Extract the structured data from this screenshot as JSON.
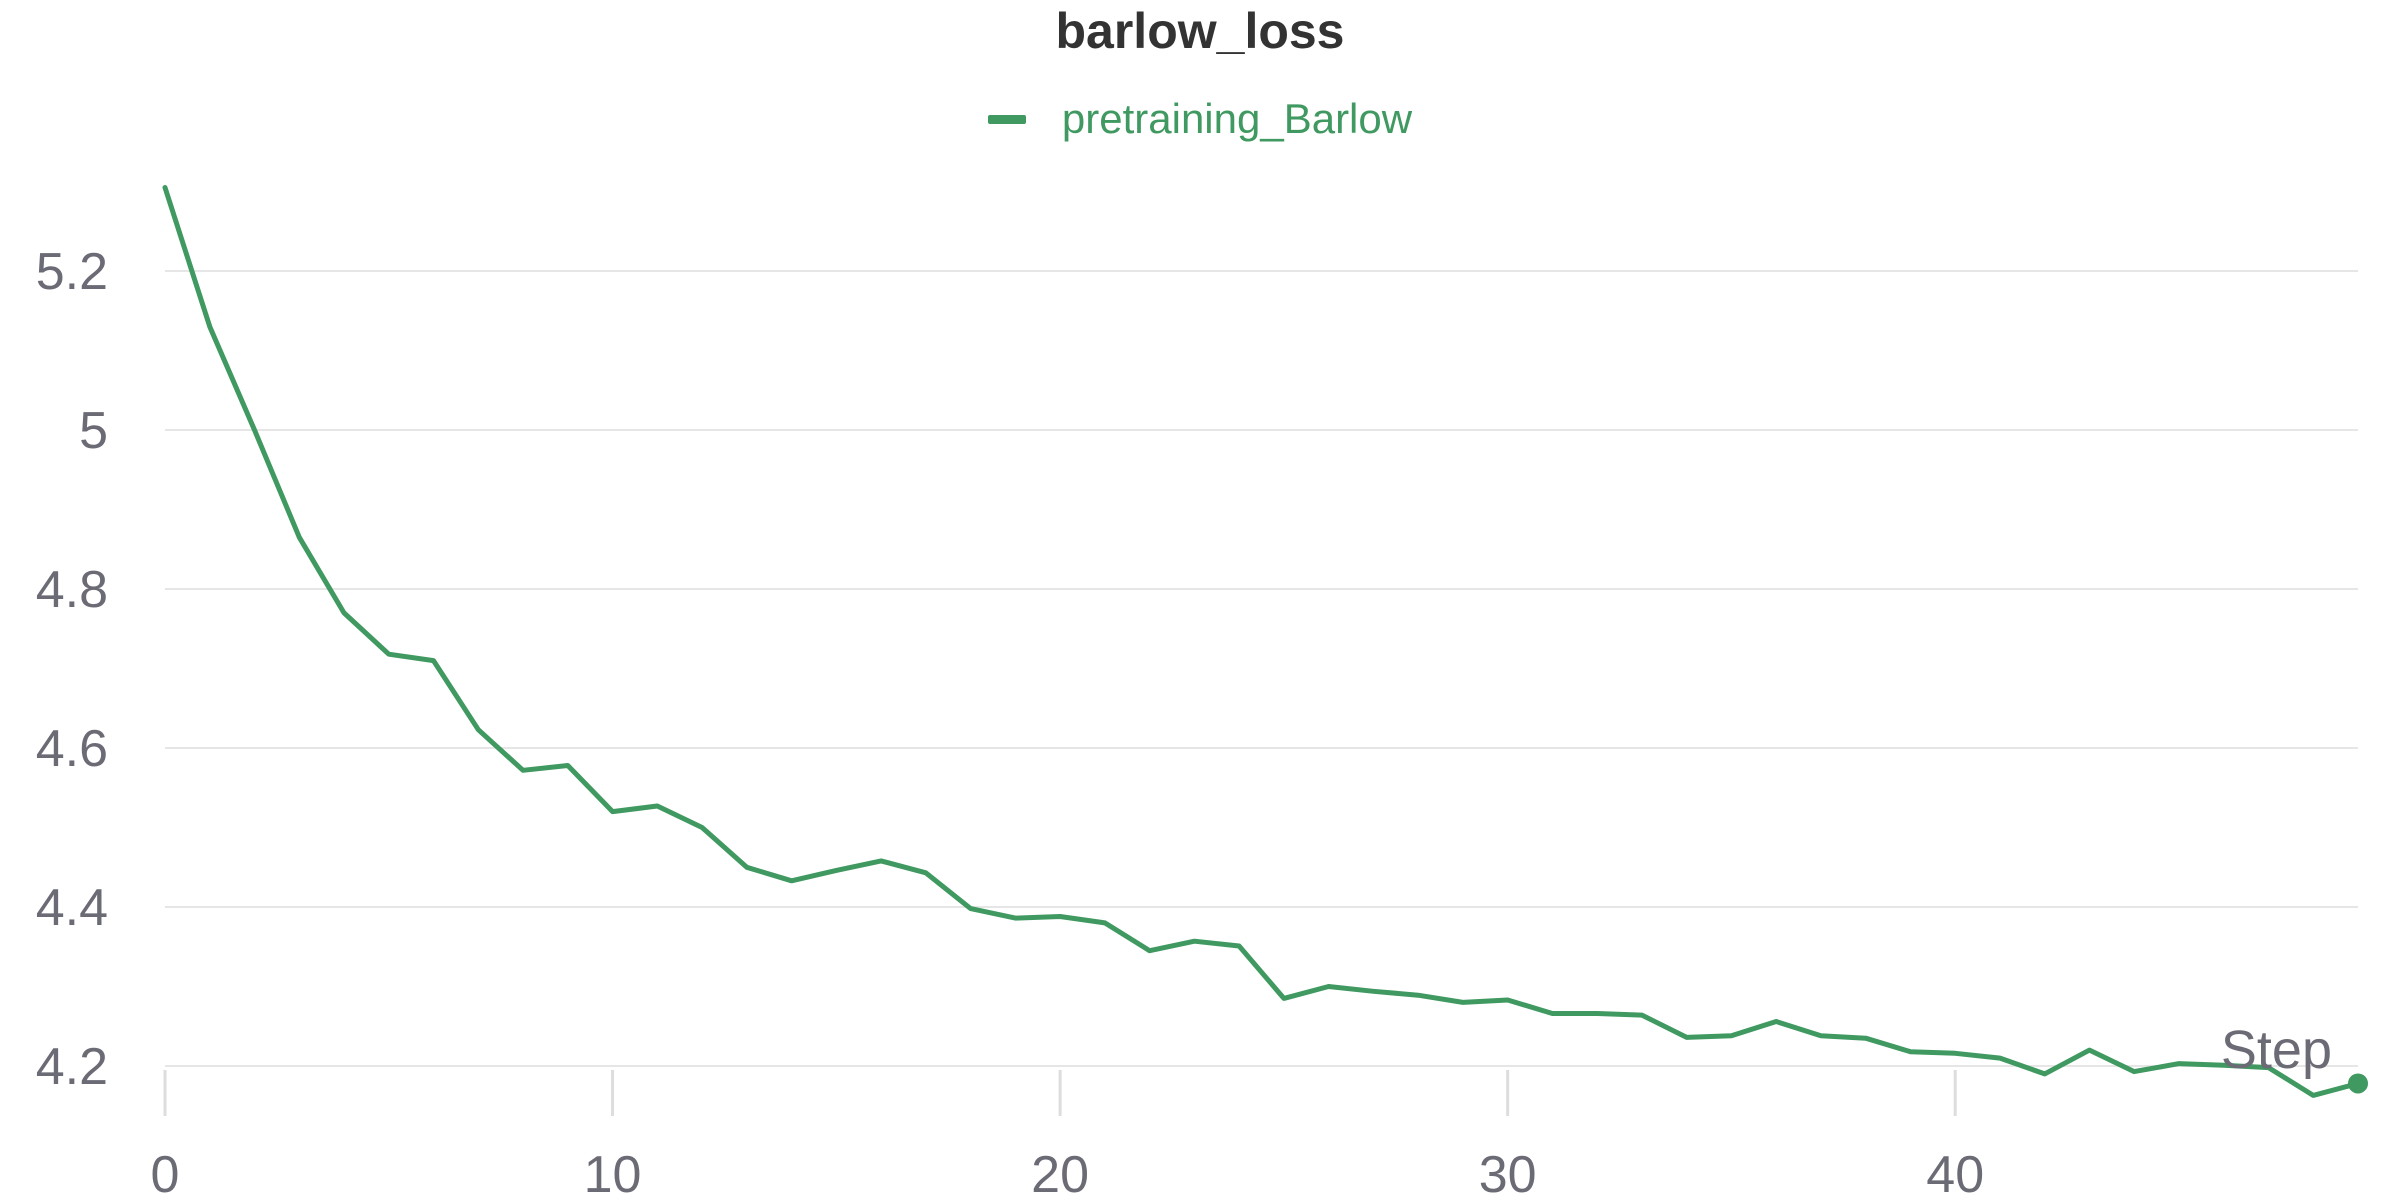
{
  "chart_data": {
    "type": "line",
    "title": "barlow_loss",
    "xlabel": "Step",
    "ylabel": "",
    "xlim": [
      0,
      49
    ],
    "ylim": [
      4.18,
      5.3
    ],
    "grid": true,
    "legend_position": "top-center",
    "x_ticks": [
      0,
      10,
      20,
      30,
      40
    ],
    "x_tick_labels": [
      "0",
      "10",
      "20",
      "30",
      "40"
    ],
    "y_ticks": [
      4.2,
      4.4,
      4.6,
      4.8,
      5.0,
      5.2
    ],
    "y_tick_labels": [
      "4.2",
      "4.4",
      "4.6",
      "4.8",
      "5",
      "5.2"
    ],
    "series": [
      {
        "name": "pretraining_Barlow",
        "color": "#3f9960",
        "x": [
          0,
          1,
          2,
          3,
          4,
          5,
          6,
          7,
          8,
          9,
          10,
          11,
          12,
          13,
          14,
          15,
          16,
          17,
          18,
          19,
          20,
          21,
          22,
          23,
          24,
          25,
          26,
          27,
          28,
          29,
          30,
          31,
          32,
          33,
          34,
          35,
          36,
          37,
          38,
          39,
          40,
          41,
          42,
          43,
          44,
          45,
          46,
          47,
          48,
          49
        ],
        "values": [
          5.305,
          5.13,
          5.0,
          4.865,
          4.77,
          4.718,
          4.71,
          4.623,
          4.572,
          4.578,
          4.52,
          4.527,
          4.5,
          4.45,
          4.433,
          4.446,
          4.458,
          4.443,
          4.398,
          4.386,
          4.388,
          4.38,
          4.345,
          4.357,
          4.351,
          4.285,
          4.3,
          4.294,
          4.289,
          4.28,
          4.283,
          4.266,
          4.266,
          4.264,
          4.236,
          4.238,
          4.256,
          4.238,
          4.235,
          4.218,
          4.216,
          4.21,
          4.19,
          4.22,
          4.193,
          4.203,
          4.201,
          4.198,
          4.163,
          4.178
        ]
      }
    ]
  }
}
